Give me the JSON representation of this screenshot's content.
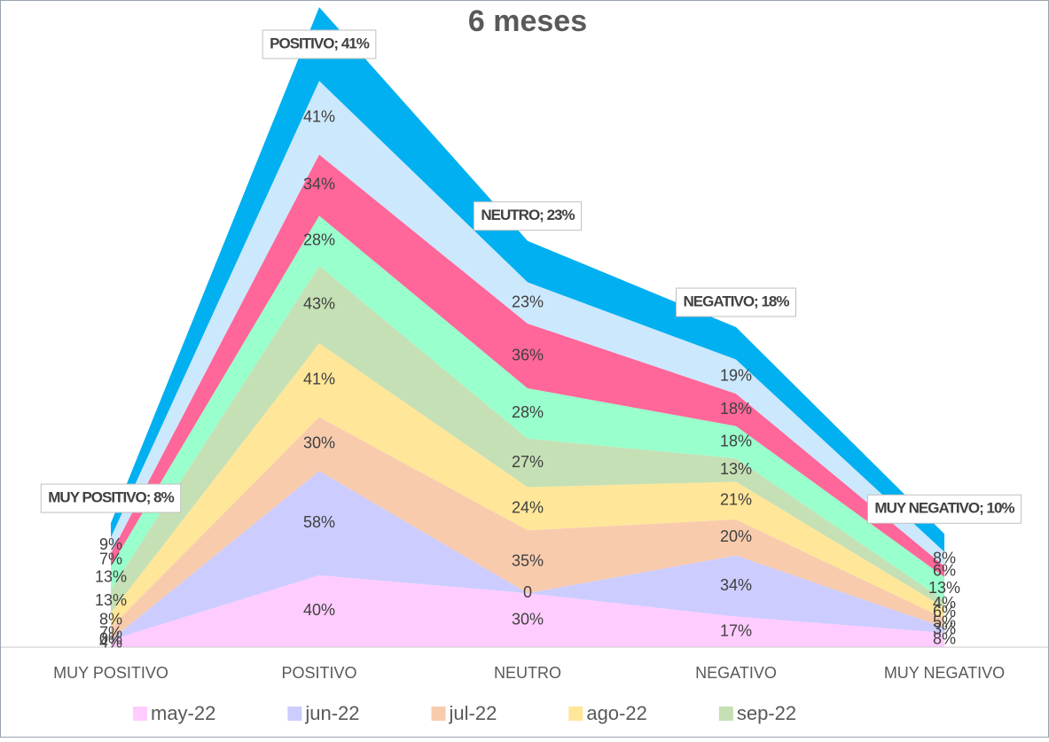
{
  "chart_data": {
    "type": "stacked_area",
    "title": "6 meses",
    "categories": [
      "MUY POSITIVO",
      "POSITIVO",
      "NEUTRO",
      "NEGATIVO",
      "MUY NEGATIVO"
    ],
    "ylim": [
      0,
      360
    ],
    "series": [
      {
        "name": "may-22",
        "color": "#ffccff",
        "values": [
          4,
          40,
          30,
          17,
          8
        ],
        "value_labels": [
          "4%",
          "40%",
          "30%",
          "17%",
          "8%"
        ]
      },
      {
        "name": "jun-22",
        "color": "#ccccff",
        "values": [
          0,
          58,
          0,
          34,
          3
        ],
        "value_labels": [
          "0%",
          "58%",
          "0",
          "34%",
          "3%"
        ]
      },
      {
        "name": "jul-22",
        "color": "#f8cbad",
        "values": [
          7,
          30,
          35,
          20,
          5
        ],
        "value_labels": [
          "7%",
          "30%",
          "35%",
          "20%",
          "5%"
        ]
      },
      {
        "name": "ago-22",
        "color": "#ffe699",
        "values": [
          8,
          41,
          24,
          21,
          6
        ],
        "value_labels": [
          "8%",
          "41%",
          "24%",
          "21%",
          "6%"
        ]
      },
      {
        "name": "sep-22",
        "color": "#c5e0b4",
        "values": [
          13,
          43,
          27,
          13,
          4
        ],
        "value_labels": [
          "13%",
          "43%",
          "27%",
          "13%",
          "4%"
        ]
      },
      {
        "color": "#99ffcc",
        "values": [
          13,
          28,
          28,
          18,
          13
        ],
        "value_labels": [
          "13%",
          "28%",
          "28%",
          "18%",
          "13%"
        ]
      },
      {
        "color": "#ff6699",
        "values": [
          7,
          34,
          36,
          18,
          6
        ],
        "value_labels": [
          "7%",
          "34%",
          "36%",
          "18%",
          "6%"
        ]
      },
      {
        "color": "#cce8fc",
        "values": [
          9,
          41,
          23,
          19,
          8
        ],
        "value_labels": [
          "9%",
          "41%",
          "23%",
          "19%",
          "8%"
        ]
      },
      {
        "color": "#00b0f0",
        "values": [
          8,
          41,
          23,
          18,
          10
        ],
        "value_labels": [
          "MUY POSITIVO; 8%",
          "POSITIVO; 41%",
          "NEUTRO; 23%",
          "NEGATIVO; 18%",
          "MUY NEGATIVO; 10%"
        ],
        "callout": true
      }
    ]
  }
}
